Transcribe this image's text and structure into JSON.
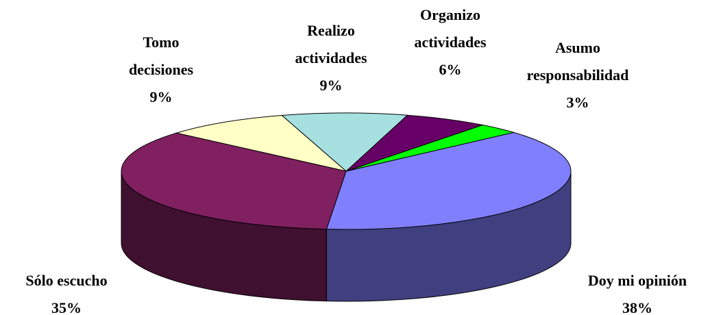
{
  "chart_data": {
    "type": "pie",
    "categories": [
      "Doy mi opinión",
      "Asumo responsabilidad",
      "Organizo actividades",
      "Realizo actividades",
      "Tomo decisiones",
      "Sólo escucho"
    ],
    "values": [
      38,
      3,
      6,
      9,
      9,
      35
    ],
    "value_labels": [
      "38%",
      "3%",
      "6%",
      "9%",
      "9%",
      "35%"
    ],
    "colors": [
      "#8080ff",
      "#00ff00",
      "#660066",
      "#a6e0e0",
      "#ffffc6",
      "#802060"
    ]
  }
}
